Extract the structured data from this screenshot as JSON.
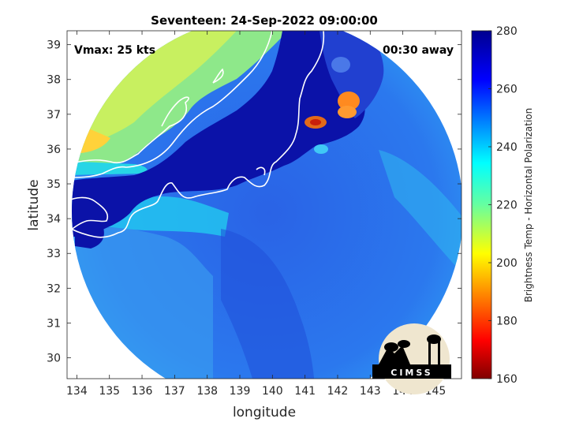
{
  "chart_data": {
    "type": "heatmap",
    "title": "Seventeen: 24-Sep-2022 09:00:00",
    "xlabel": "longitude",
    "ylabel": "latitude",
    "xlim": [
      133.7,
      145.8
    ],
    "ylim": [
      29.4,
      39.4
    ],
    "x_ticks": [
      134,
      135,
      136,
      137,
      138,
      139,
      140,
      141,
      142,
      143,
      144,
      145
    ],
    "y_ticks": [
      30,
      31,
      32,
      33,
      34,
      35,
      36,
      37,
      38,
      39
    ],
    "grid": false,
    "annotations": {
      "vmax": "Vmax: 25 kts",
      "time_offset": "00:30 away"
    },
    "colorbar": {
      "label": "Brightness Temp - Horizontal Polarization",
      "min": 160,
      "max": 280,
      "ticks": [
        160,
        180,
        200,
        220,
        240,
        260,
        280
      ],
      "colormap": "jet"
    },
    "logo_text": "CIMSS"
  }
}
